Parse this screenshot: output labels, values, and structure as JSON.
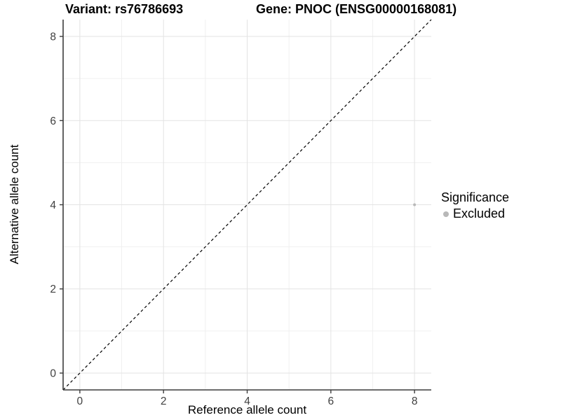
{
  "chart_data": {
    "type": "scatter",
    "titles": {
      "left": "Variant: rs76786693",
      "right": "Gene: PNOC (ENSG00000168081)"
    },
    "xlabel": "Reference allele count",
    "ylabel": "Alternative allele count",
    "xlim": [
      -0.4,
      8.4
    ],
    "ylim": [
      -0.4,
      8.4
    ],
    "xticks": [
      0,
      2,
      4,
      6,
      8
    ],
    "yticks": [
      0,
      2,
      4,
      6,
      8
    ],
    "grid": {
      "major": true,
      "minor": true
    },
    "reference_line": {
      "type": "identity",
      "style": "dashed",
      "x1": -0.4,
      "y1": -0.4,
      "x2": 8.4,
      "y2": 8.4,
      "color": "#000000"
    },
    "points": [
      {
        "x": 8,
        "y": 4,
        "category": "Excluded"
      }
    ],
    "legend": {
      "title": "Significance",
      "position": "right",
      "items": [
        {
          "label": "Excluded",
          "color": "#b8b8b8"
        }
      ]
    }
  },
  "colors": {
    "background": "#ffffff",
    "major_grid": "#e3e3e3",
    "minor_grid": "#f0f0f0",
    "axis_line": "#3c3c3c",
    "tick_mark": "#3c3c3c",
    "tick_label": "#404040",
    "point": "#b8b8b8"
  }
}
